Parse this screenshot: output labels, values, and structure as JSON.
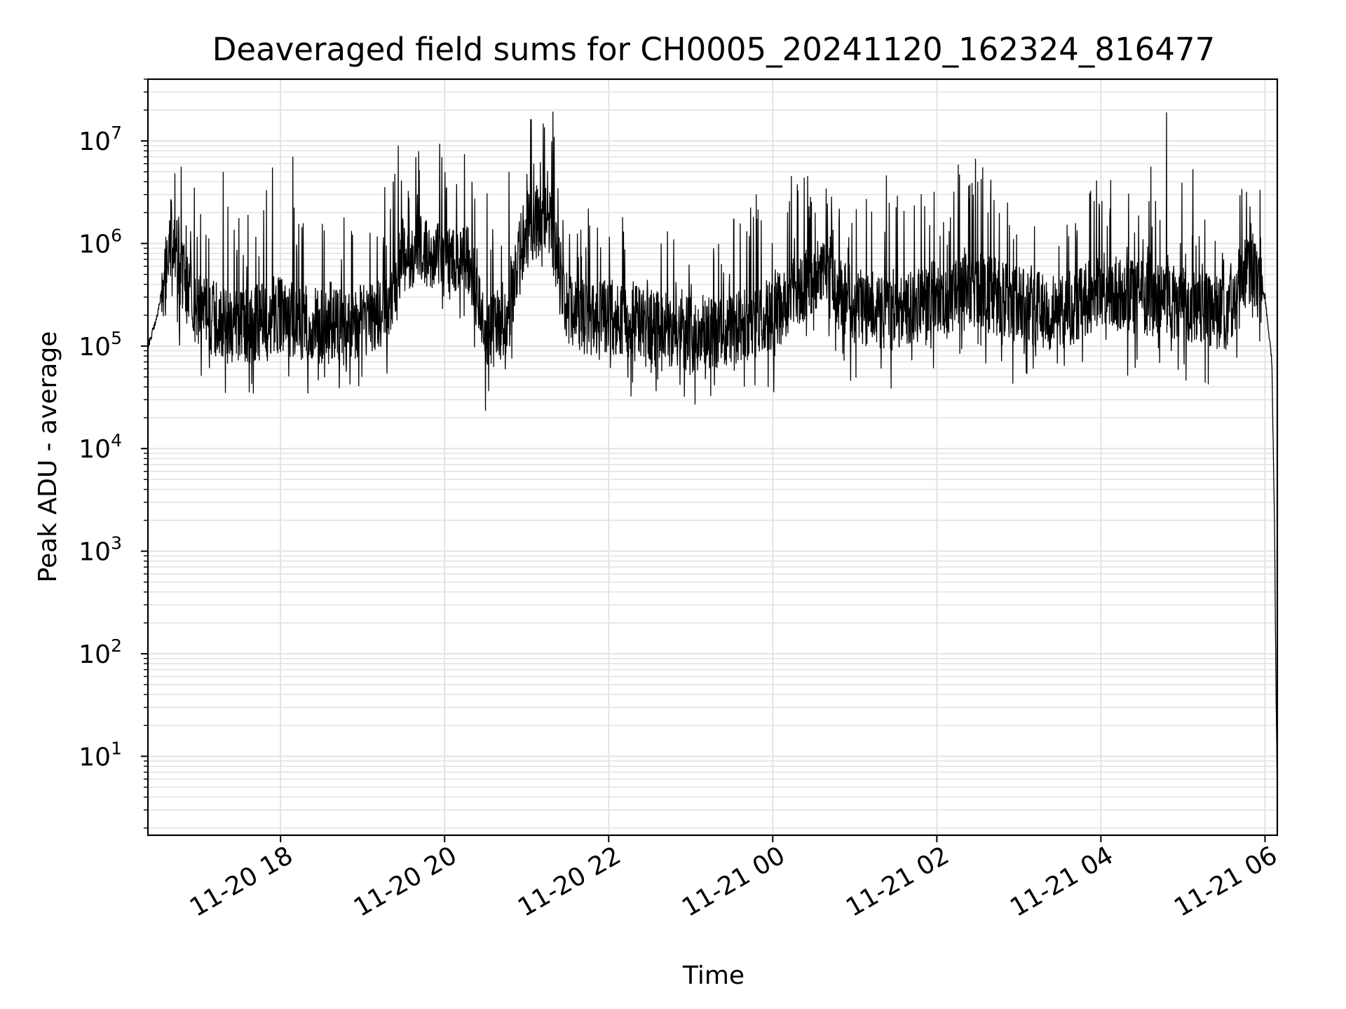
{
  "chart_data": {
    "type": "line",
    "title": "Deaveraged field sums for CH0005_20241120_162324_816477",
    "xlabel": "Time",
    "ylabel": "Peak ADU - average",
    "x_scale": "time",
    "y_scale": "log",
    "xlim": [
      "2024-11-20 16:23",
      "2024-11-21 06:09"
    ],
    "ylim": [
      1.7,
      40000000
    ],
    "grid": true,
    "legend": "none",
    "line_color": "#000000",
    "grid_color": "#e3e3e3",
    "x_ticks": [
      {
        "t": "2024-11-20 18:00",
        "label": "11-20 18"
      },
      {
        "t": "2024-11-20 20:00",
        "label": "11-20 20"
      },
      {
        "t": "2024-11-20 22:00",
        "label": "11-20 22"
      },
      {
        "t": "2024-11-21 00:00",
        "label": "11-21 00"
      },
      {
        "t": "2024-11-21 02:00",
        "label": "11-21 02"
      },
      {
        "t": "2024-11-21 04:00",
        "label": "11-21 04"
      },
      {
        "t": "2024-11-21 06:00",
        "label": "11-21 06"
      }
    ],
    "y_ticks": [
      {
        "value": 10,
        "base": "10",
        "exp": "1"
      },
      {
        "value": 100,
        "base": "10",
        "exp": "2"
      },
      {
        "value": 1000,
        "base": "10",
        "exp": "3"
      },
      {
        "value": 10000,
        "base": "10",
        "exp": "4"
      },
      {
        "value": 100000,
        "base": "10",
        "exp": "5"
      },
      {
        "value": 1000000,
        "base": "10",
        "exp": "6"
      },
      {
        "value": 10000000,
        "base": "10",
        "exp": "7"
      }
    ],
    "series": [
      {
        "x": [
          "2024-11-20 16:23",
          "2024-11-20 16:30",
          "2024-11-20 16:40",
          "2024-11-20 16:50",
          "2024-11-20 17:00",
          "2024-11-20 17:15",
          "2024-11-20 17:30",
          "2024-11-20 17:45",
          "2024-11-20 18:00",
          "2024-11-20 18:15",
          "2024-11-20 18:30",
          "2024-11-20 18:45",
          "2024-11-20 19:00",
          "2024-11-20 19:15",
          "2024-11-20 19:30",
          "2024-11-20 19:45",
          "2024-11-20 20:00",
          "2024-11-20 20:15",
          "2024-11-20 20:30",
          "2024-11-20 20:45",
          "2024-11-20 21:00",
          "2024-11-20 21:15",
          "2024-11-20 21:30",
          "2024-11-20 21:45",
          "2024-11-20 22:00",
          "2024-11-20 22:30",
          "2024-11-20 23:00",
          "2024-11-20 23:30",
          "2024-11-21 00:00",
          "2024-11-21 00:30",
          "2024-11-21 01:00",
          "2024-11-21 01:30",
          "2024-11-21 02:00",
          "2024-11-21 02:30",
          "2024-11-21 03:00",
          "2024-11-21 03:30",
          "2024-11-21 04:00",
          "2024-11-21 04:30",
          "2024-11-21 05:00",
          "2024-11-21 05:30",
          "2024-11-21 05:50",
          "2024-11-21 06:00",
          "2024-11-21 06:05",
          "2024-11-21 06:07",
          "2024-11-21 06:08",
          "2024-11-21 06:09"
        ],
        "y": [
          100000,
          200000,
          1200000,
          400000,
          220000,
          180000,
          150000,
          170000,
          200000,
          170000,
          150000,
          160000,
          180000,
          200000,
          800000,
          900000,
          700000,
          900000,
          120000,
          200000,
          1500000,
          1800000,
          250000,
          180000,
          200000,
          150000,
          130000,
          150000,
          200000,
          500000,
          250000,
          200000,
          300000,
          350000,
          250000,
          200000,
          350000,
          300000,
          250000,
          200000,
          700000,
          300000,
          70000,
          1800,
          50,
          4
        ]
      }
    ],
    "annotations_peaks": [
      {
        "t": "2024-11-20 16:40",
        "y": 2600000
      },
      {
        "t": "2024-11-20 16:57",
        "y": 3500000
      },
      {
        "t": "2024-11-20 17:18",
        "y": 5000000
      },
      {
        "t": "2024-11-20 17:54",
        "y": 5500000
      },
      {
        "t": "2024-11-20 18:09",
        "y": 7000000
      },
      {
        "t": "2024-11-20 19:40",
        "y": 3000000
      },
      {
        "t": "2024-11-20 20:20",
        "y": 4000000
      },
      {
        "t": "2024-11-20 20:47",
        "y": 5000000
      },
      {
        "t": "2024-11-20 21:10",
        "y": 6200000
      },
      {
        "t": "2024-11-20 21:20",
        "y": 4200000
      },
      {
        "t": "2024-11-21 00:31",
        "y": 2000000
      },
      {
        "t": "2024-11-21 02:10",
        "y": 1800000
      },
      {
        "t": "2024-11-21 03:55",
        "y": 2600000
      },
      {
        "t": "2024-11-21 04:40",
        "y": 2600000
      },
      {
        "t": "2024-11-21 04:48",
        "y": 19000000
      },
      {
        "t": "2024-11-21 05:43",
        "y": 3400000
      },
      {
        "t": "2024-11-21 05:49",
        "y": 2300000
      }
    ]
  }
}
